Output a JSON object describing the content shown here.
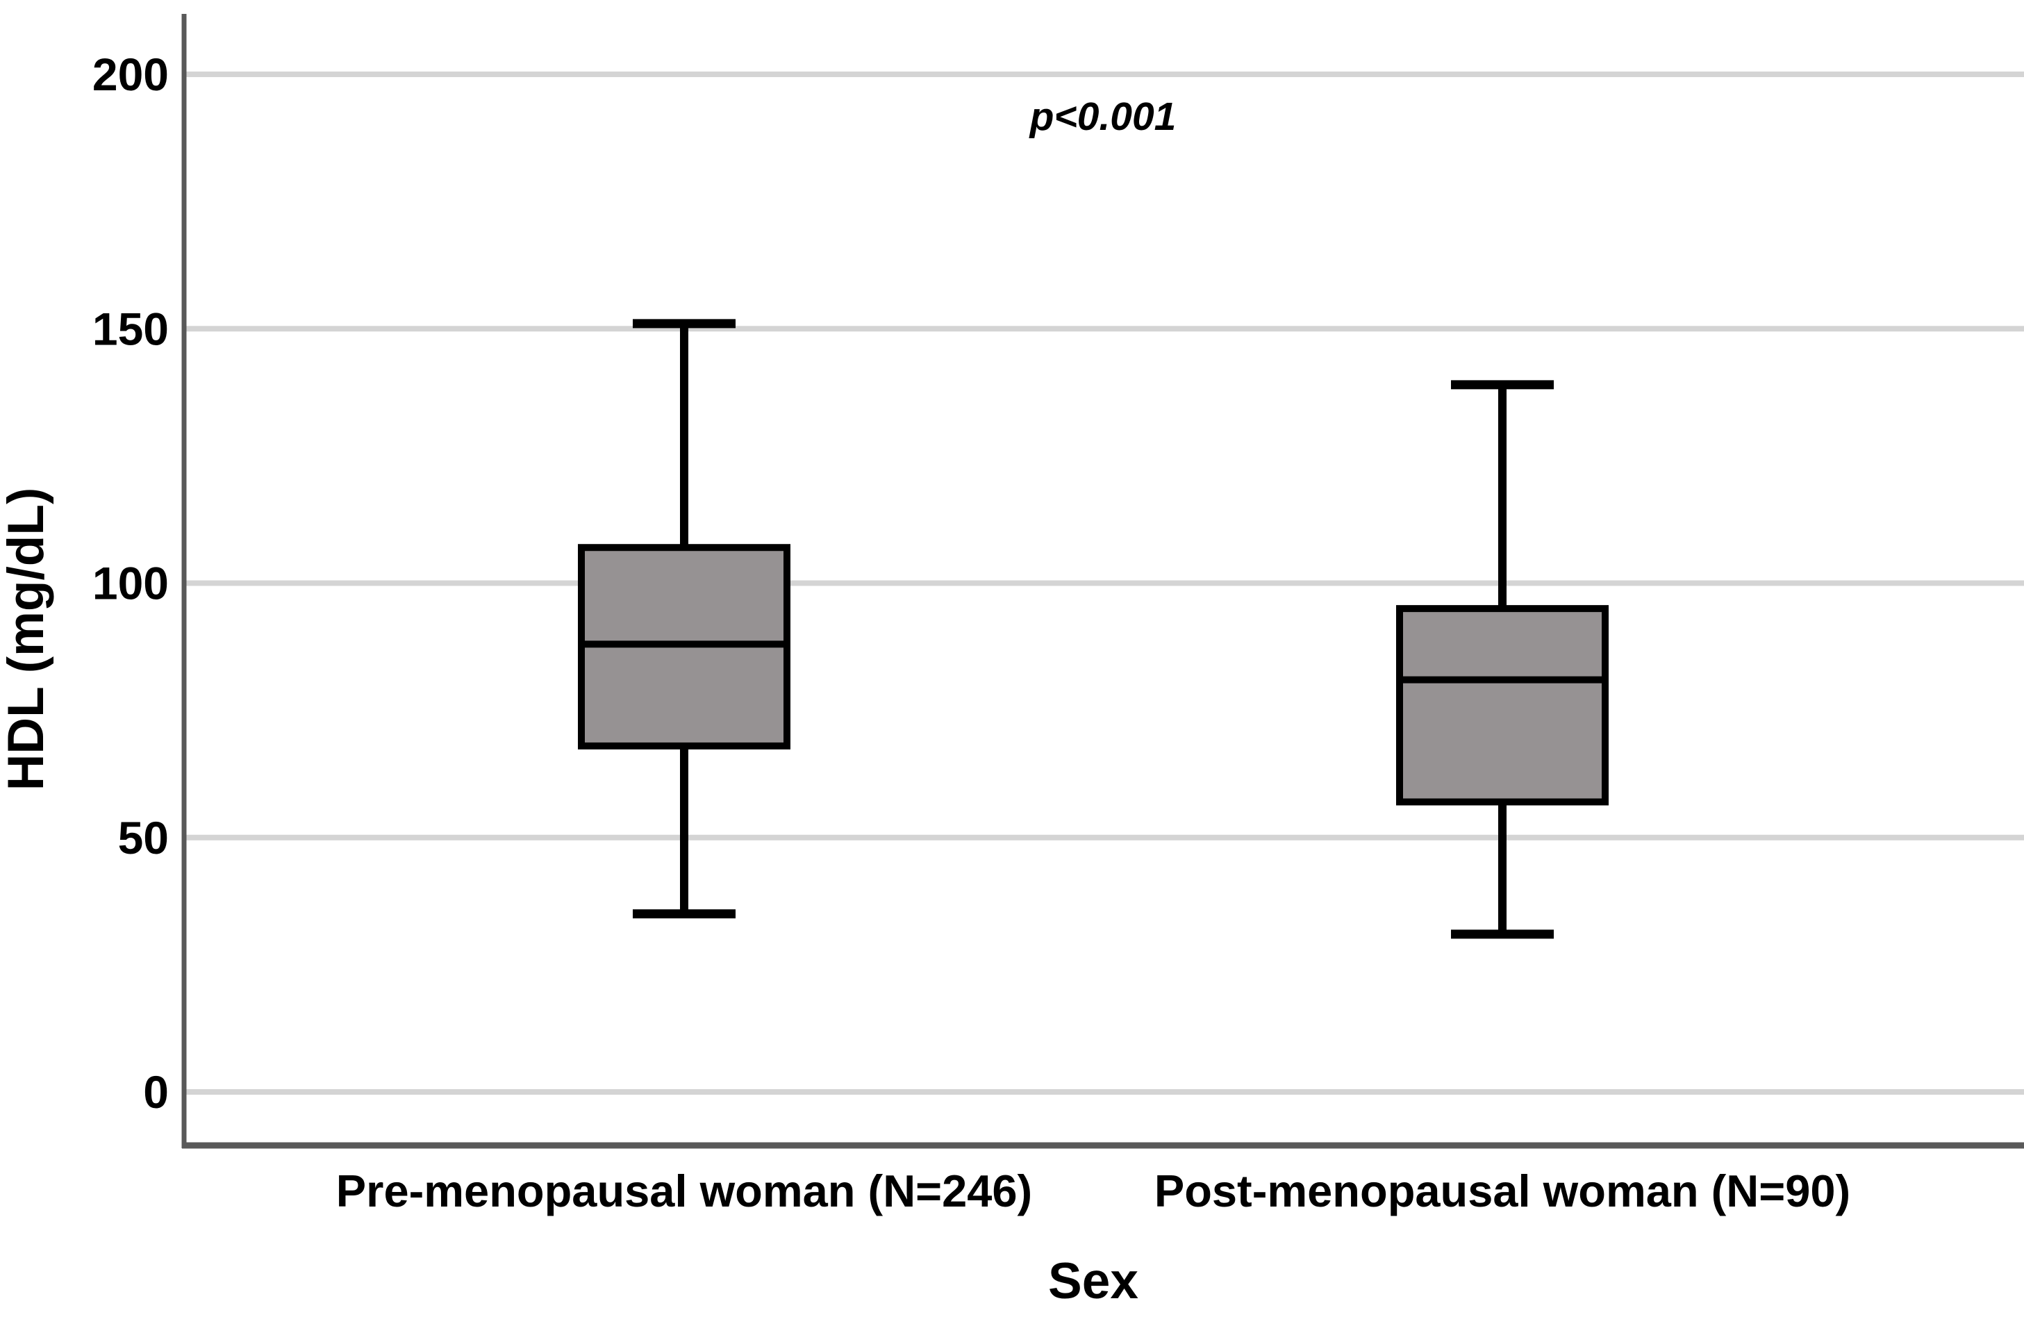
{
  "chart_data": {
    "type": "box",
    "title": "",
    "annotation": "p<0.001",
    "xlabel": "Sex",
    "ylabel": "HDL (mg/dL)",
    "ylim": [
      -10.5,
      212
    ],
    "yticks": [
      200,
      150,
      100,
      50,
      0
    ],
    "grid": true,
    "legend": "none",
    "categories": [
      "Pre-menopausal woman (N=246)",
      "Post-menopausal woman (N=90)"
    ],
    "series": [
      {
        "name": "Pre-menopausal woman (N=246)",
        "whisker_low": 35,
        "q1": 68,
        "median": 88,
        "q3": 107,
        "whisker_high": 151
      },
      {
        "name": "Post-menopausal woman (N=90)",
        "whisker_low": 31,
        "q1": 57,
        "median": 81,
        "q3": 95,
        "whisker_high": 139
      }
    ]
  },
  "colors": {
    "background": "#ffffff",
    "box_fill": "#969293",
    "box_border": "#000000",
    "median_line": "#000000",
    "whisker": "#000000",
    "gridline": "#d4d4d4",
    "axis_line": "#595959",
    "text": "#000000"
  }
}
